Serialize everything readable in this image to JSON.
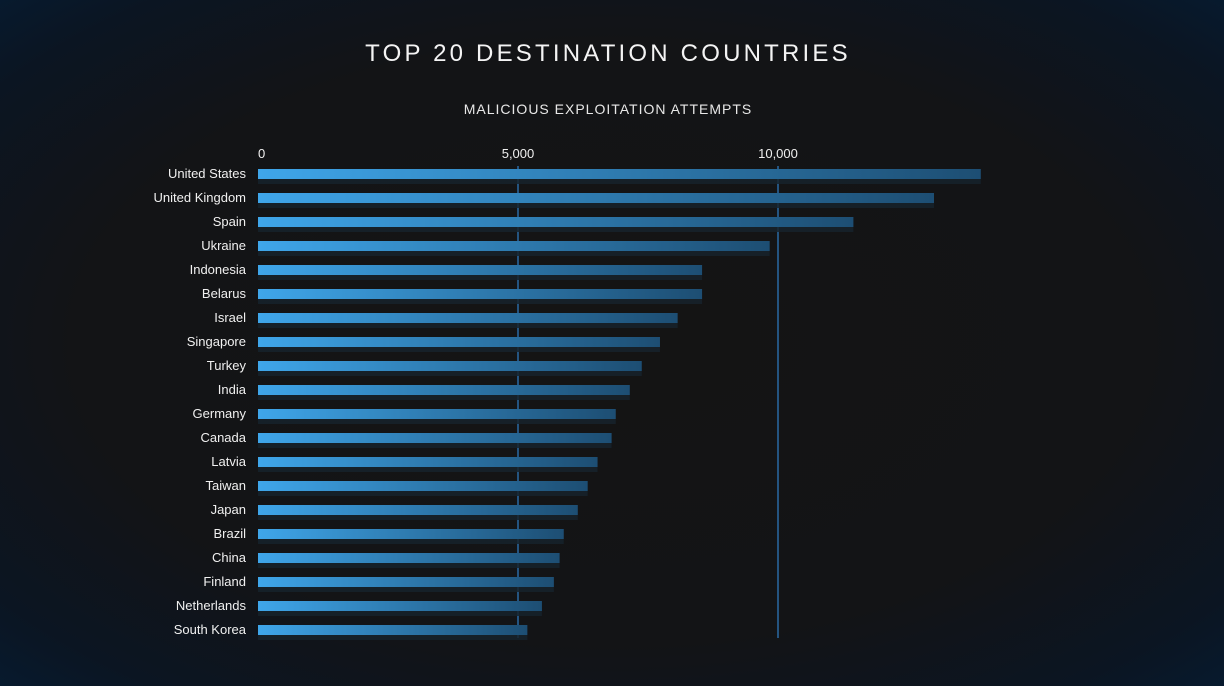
{
  "chart_data": {
    "type": "bar",
    "orientation": "horizontal",
    "title": "TOP 20 DESTINATION COUNTRIES",
    "subtitle": "MALICIOUS EXPLOITATION ATTEMPTS",
    "xlim": [
      0,
      14000
    ],
    "xticks": [
      0,
      5000,
      10000
    ],
    "xtick_labels": [
      "0",
      "5,000",
      "10,000"
    ],
    "gridlines": [
      5000,
      10000
    ],
    "categories": [
      "United States",
      "United Kingdom",
      "Spain",
      "Ukraine",
      "Indonesia",
      "Belarus",
      "Israel",
      "Singapore",
      "Turkey",
      "India",
      "Germany",
      "Canada",
      "Latvia",
      "Taiwan",
      "Japan",
      "Brazil",
      "China",
      "Finland",
      "Netherlands",
      "South Korea"
    ],
    "values": [
      13900,
      13000,
      11450,
      9840,
      8540,
      8540,
      8070,
      7730,
      7380,
      7150,
      6880,
      6800,
      6530,
      6340,
      6150,
      5880,
      5800,
      5690,
      5460,
      5180
    ],
    "colors": {
      "bar_start": "#3fa6ea",
      "bar_end": "#1d4e73",
      "bar_shadow": "#16222c",
      "gridline": "#2a6aa3"
    }
  }
}
